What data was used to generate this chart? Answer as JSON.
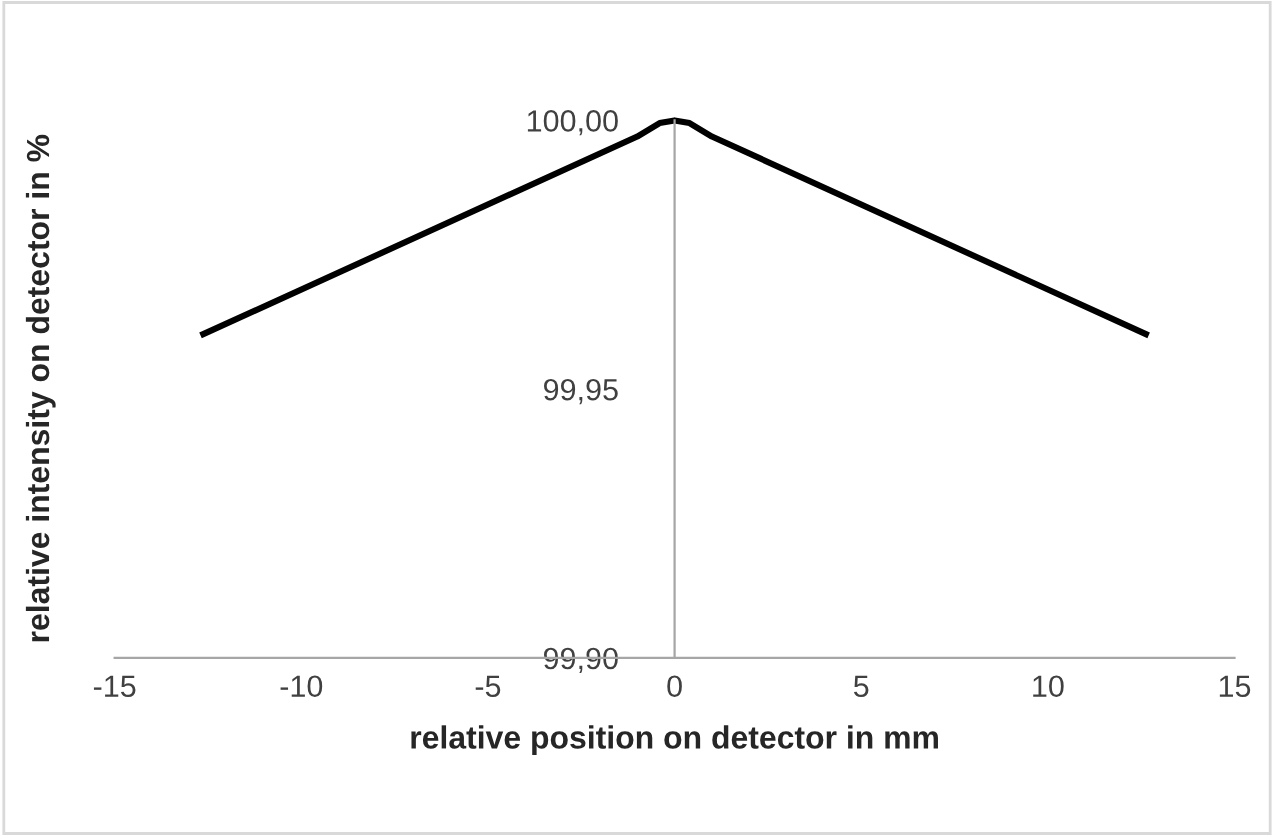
{
  "chart_data": {
    "type": "line",
    "xlabel": "relative position on detector in mm",
    "ylabel": "relative intensity on detector in %",
    "x": [
      -12.7,
      -1,
      -0.4,
      0,
      0.4,
      1,
      12.7
    ],
    "series": [
      {
        "color": "#000000",
        "values": [
          99.96,
          99.997,
          99.9995,
          100.0,
          99.9995,
          99.997,
          99.96
        ]
      }
    ],
    "xlim": [
      -15,
      15
    ],
    "xticks": [
      -15,
      -10,
      -5,
      0,
      5,
      10,
      15
    ],
    "ylim": [
      99.9,
      100.0
    ],
    "yticks": [
      {
        "value": 99.9,
        "label": "99,90"
      },
      {
        "value": 99.95,
        "label": "99,95"
      },
      {
        "value": 100.0,
        "label": "100,00"
      }
    ],
    "grid": false,
    "legend": false,
    "marker": "none",
    "line_style": "solid"
  }
}
